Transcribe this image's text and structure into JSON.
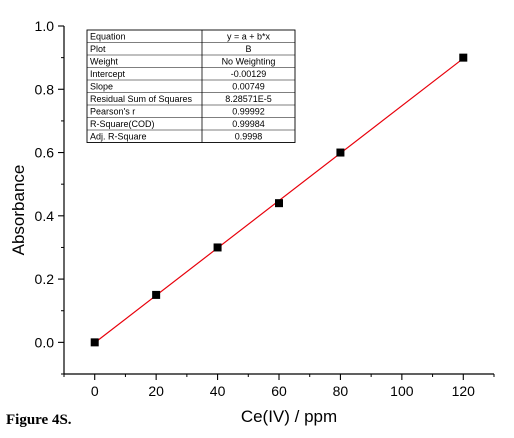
{
  "caption": "Figure 4S.",
  "chart_data": {
    "type": "scatter",
    "xlabel": "Ce(IV) / ppm",
    "ylabel": "Absorbance",
    "xlim": [
      -10,
      130
    ],
    "ylim": [
      -0.1,
      1.0
    ],
    "xticks": [
      0,
      20,
      40,
      60,
      80,
      100,
      120
    ],
    "yticks": [
      0.0,
      0.2,
      0.4,
      0.6,
      0.8,
      1.0
    ],
    "xtick_labels": [
      "0",
      "20",
      "40",
      "60",
      "80",
      "100",
      "120"
    ],
    "ytick_labels": [
      "0.0",
      "0.2",
      "0.4",
      "0.6",
      "0.8",
      "1.0"
    ],
    "grid": false,
    "marker_color": "#000000",
    "fit_color": "#e8000b",
    "series": [
      {
        "x": [
          0,
          20,
          40,
          60,
          80,
          120
        ],
        "y": [
          0.0,
          0.15,
          0.3,
          0.44,
          0.6,
          0.9
        ]
      }
    ],
    "fit": {
      "intercept": -0.00129,
      "slope": 0.00749,
      "x_range": [
        0,
        120
      ]
    },
    "stats_table": [
      [
        "Equation",
        "y = a + b*x"
      ],
      [
        "Plot",
        "B"
      ],
      [
        "Weight",
        "No Weighting"
      ],
      [
        "Intercept",
        "-0.00129"
      ],
      [
        "Slope",
        "0.00749"
      ],
      [
        "Residual Sum of Squares",
        "8.28571E-5"
      ],
      [
        "Pearson's r",
        "0.99992"
      ],
      [
        "R-Square(COD)",
        "0.99984"
      ],
      [
        "Adj. R-Square",
        "0.9998"
      ]
    ]
  }
}
